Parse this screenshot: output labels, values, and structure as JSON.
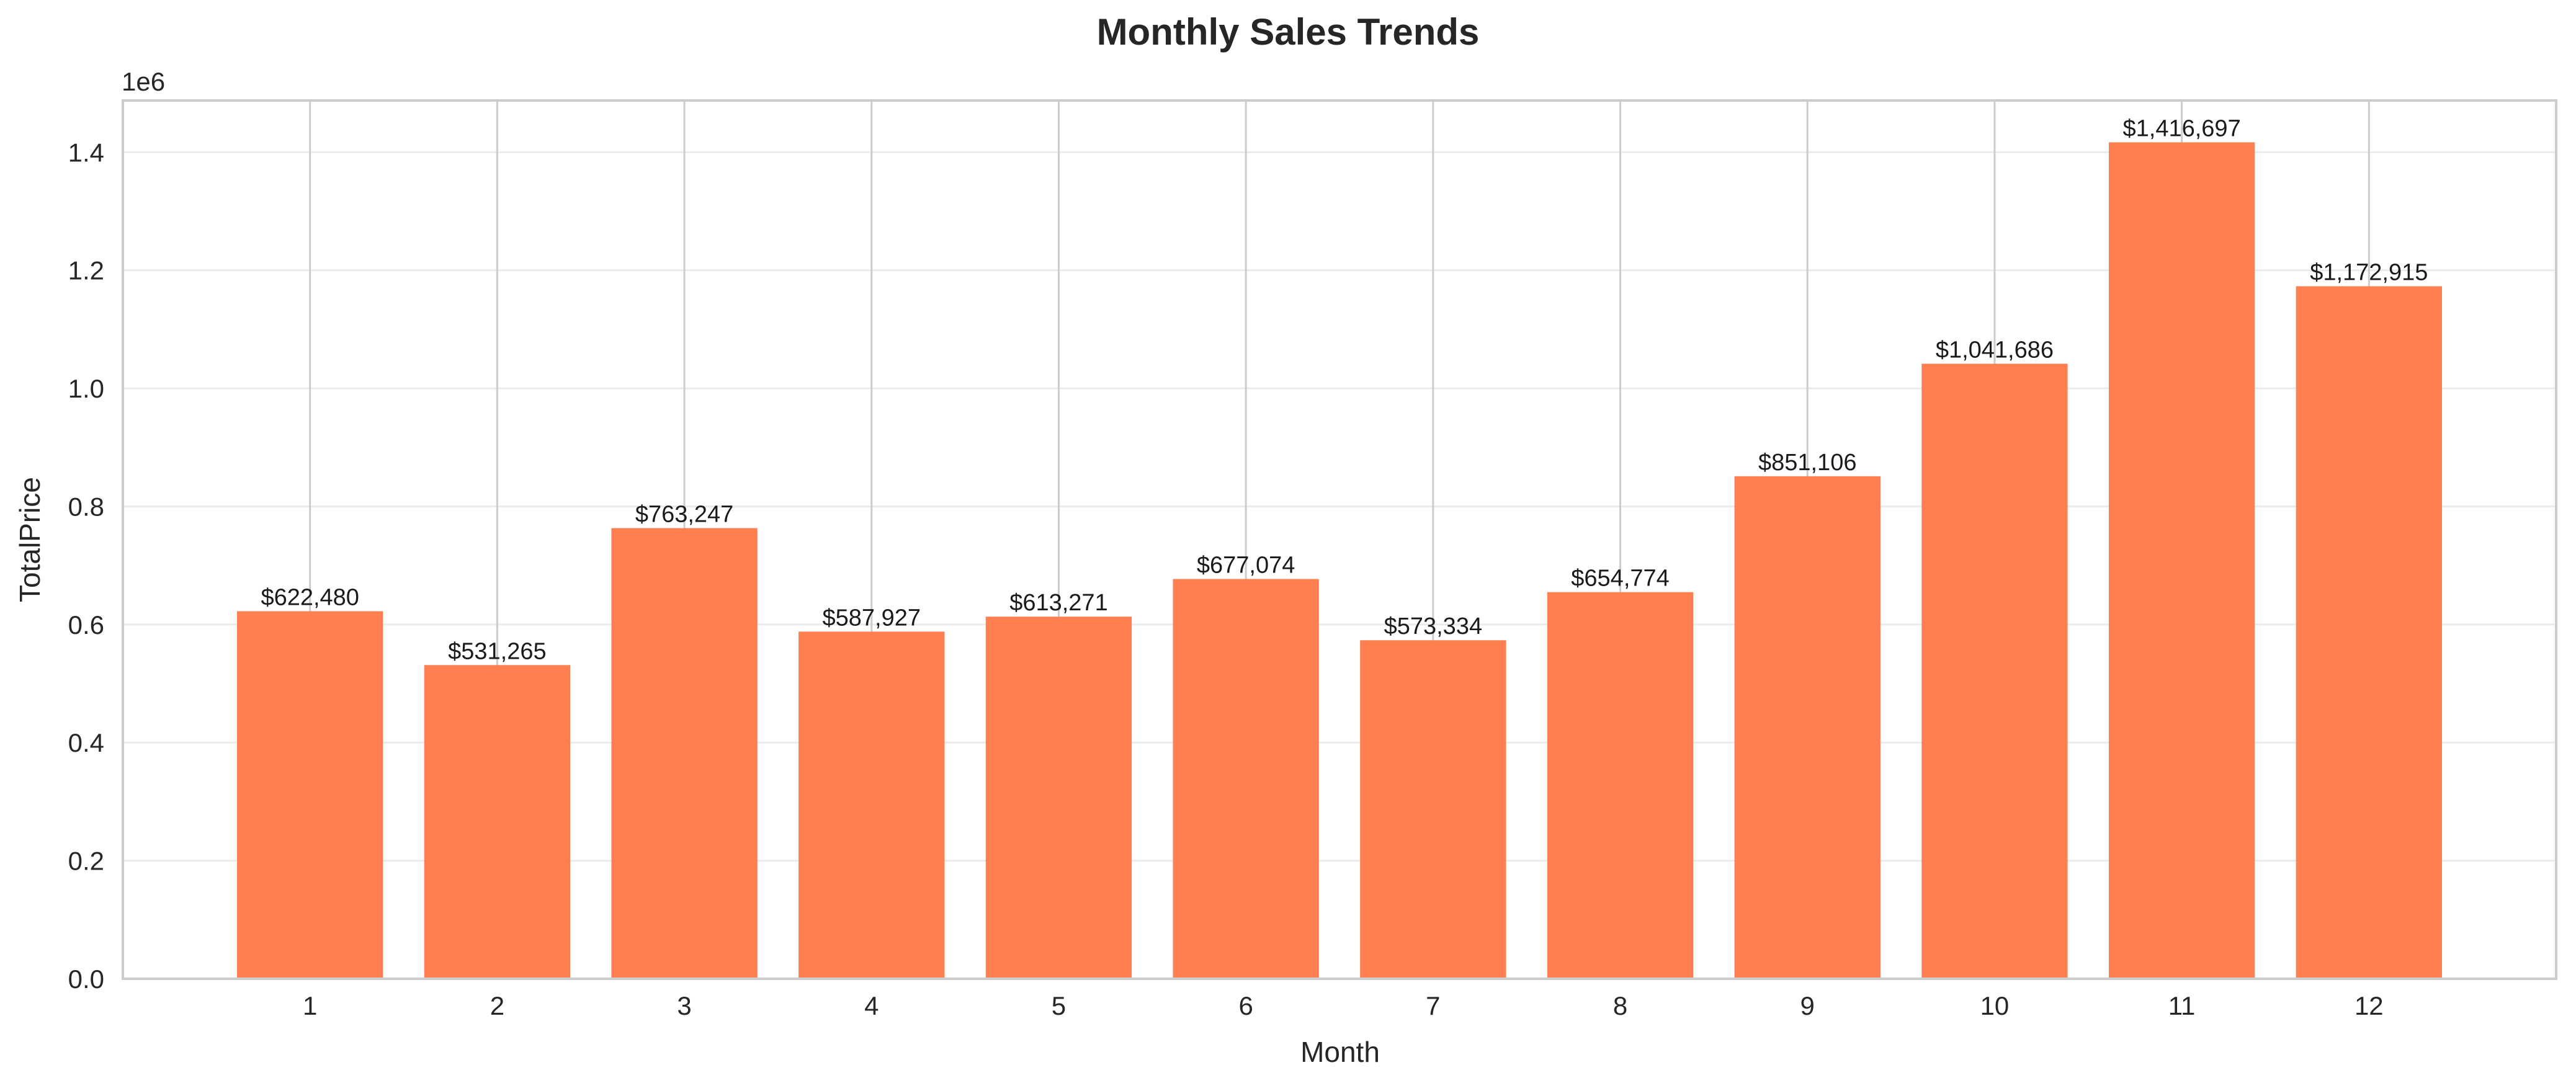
{
  "chart_data": {
    "type": "bar",
    "title": "Monthly Sales Trends",
    "xlabel": "Month",
    "ylabel": "TotalPrice",
    "y_offset_label": "1e6",
    "categories": [
      "1",
      "2",
      "3",
      "4",
      "5",
      "6",
      "7",
      "8",
      "9",
      "10",
      "11",
      "12"
    ],
    "values": [
      622480,
      531265,
      763247,
      587927,
      613271,
      677074,
      573334,
      654774,
      851106,
      1041686,
      1416697,
      1172915
    ],
    "value_labels": [
      "$622,480",
      "$531,265",
      "$763,247",
      "$587,927",
      "$613,271",
      "$677,074",
      "$573,334",
      "$654,774",
      "$851,106",
      "$1,041,686",
      "$1,416,697",
      "$1,172,915"
    ],
    "ylim": [
      0,
      1487531
    ],
    "y_ticks": [
      0,
      200000,
      400000,
      600000,
      800000,
      1000000,
      1200000,
      1400000
    ],
    "y_tick_labels": [
      "0.0",
      "0.2",
      "0.4",
      "0.6",
      "0.8",
      "1.0",
      "1.2",
      "1.4"
    ],
    "grid": true,
    "colors": {
      "bar": "#ff7f50",
      "grid": "#cccccc",
      "frame": "#cccccc",
      "text": "#262626"
    }
  }
}
